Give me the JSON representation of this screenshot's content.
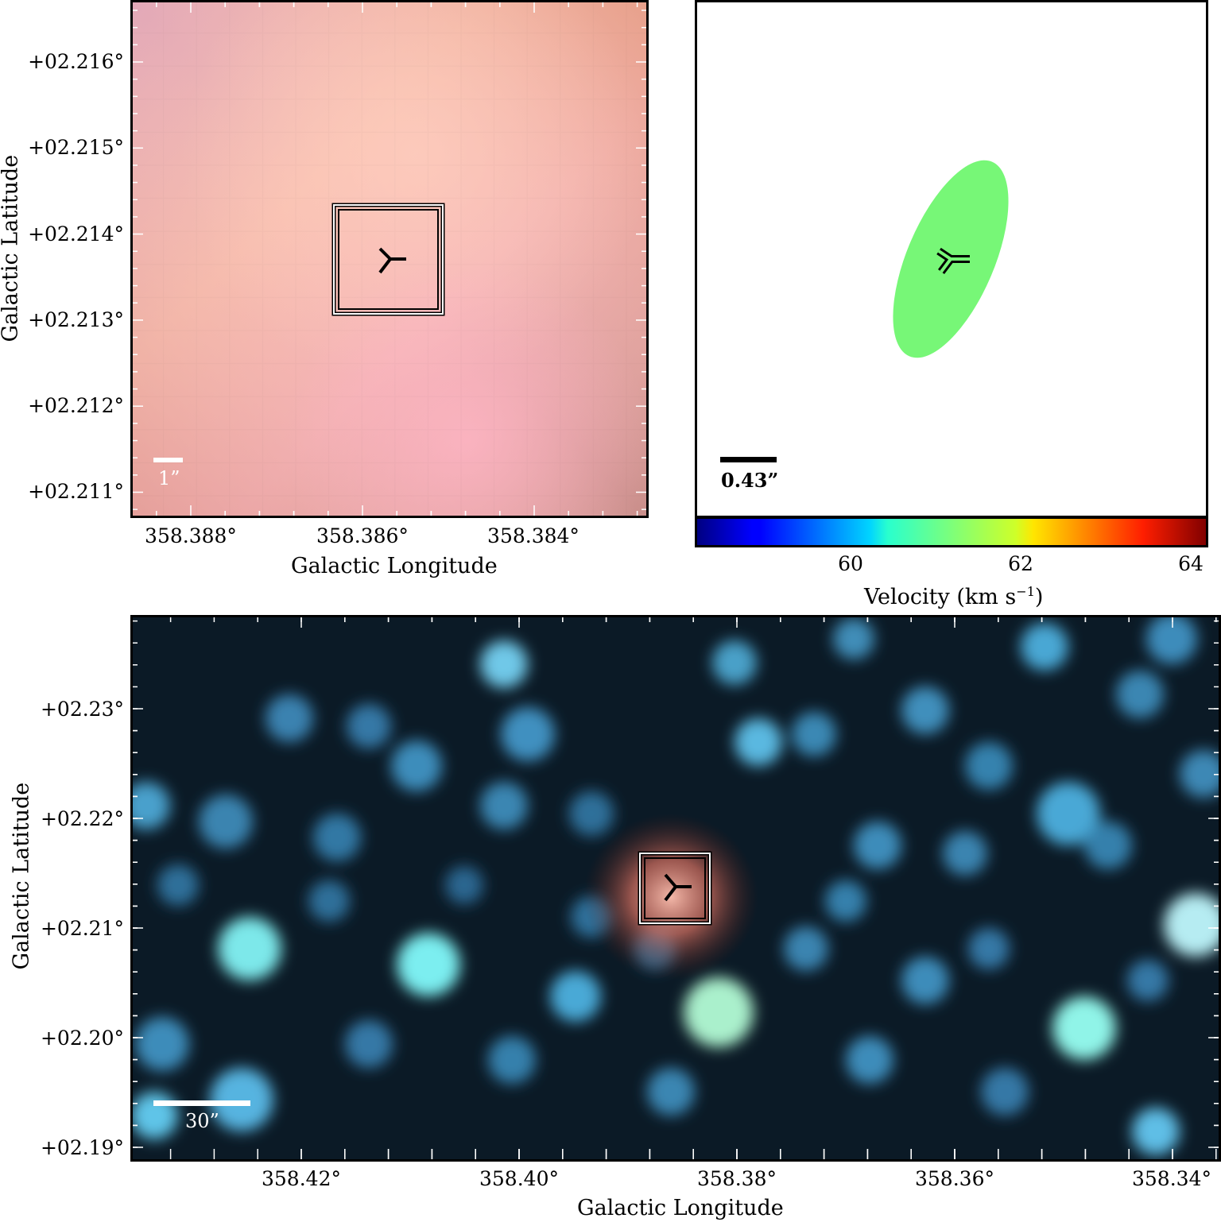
{
  "panels": {
    "top_left": {
      "y_ticks": [
        "+02.216°",
        "+02.215°",
        "+02.214°",
        "+02.213°",
        "+02.212°",
        "+02.211°"
      ],
      "x_ticks": [
        "358.388°",
        "358.386°",
        "358.384°"
      ],
      "x_title": "Galactic Longitude",
      "y_title": "Galactic Latitude",
      "scale_label": "1”",
      "scale_color": "#ffffff"
    },
    "top_right": {
      "scale_label": "0.43”",
      "scale_color": "#000000",
      "ellipse_color": "#77f777",
      "colorbar_ticks": [
        "60",
        "62",
        "64"
      ],
      "colorbar_title": "Velocity (km s",
      "colorbar_title_sup": "−1",
      "colorbar_title_end": ")",
      "colorbar_range": [
        58.2,
        64.2
      ],
      "colormap": "jet"
    },
    "bottom": {
      "y_ticks": [
        "+02.23°",
        "+02.22°",
        "+02.21°",
        "+02.20°",
        "+02.19°"
      ],
      "x_ticks": [
        "358.42°",
        "358.40°",
        "358.38°",
        "358.36°",
        "358.34°"
      ],
      "x_title": "Galactic Longitude",
      "y_title": "Galactic Latitude",
      "scale_label": "30”",
      "scale_color": "#ffffff"
    }
  },
  "marker": "three-pointed star marker in box"
}
